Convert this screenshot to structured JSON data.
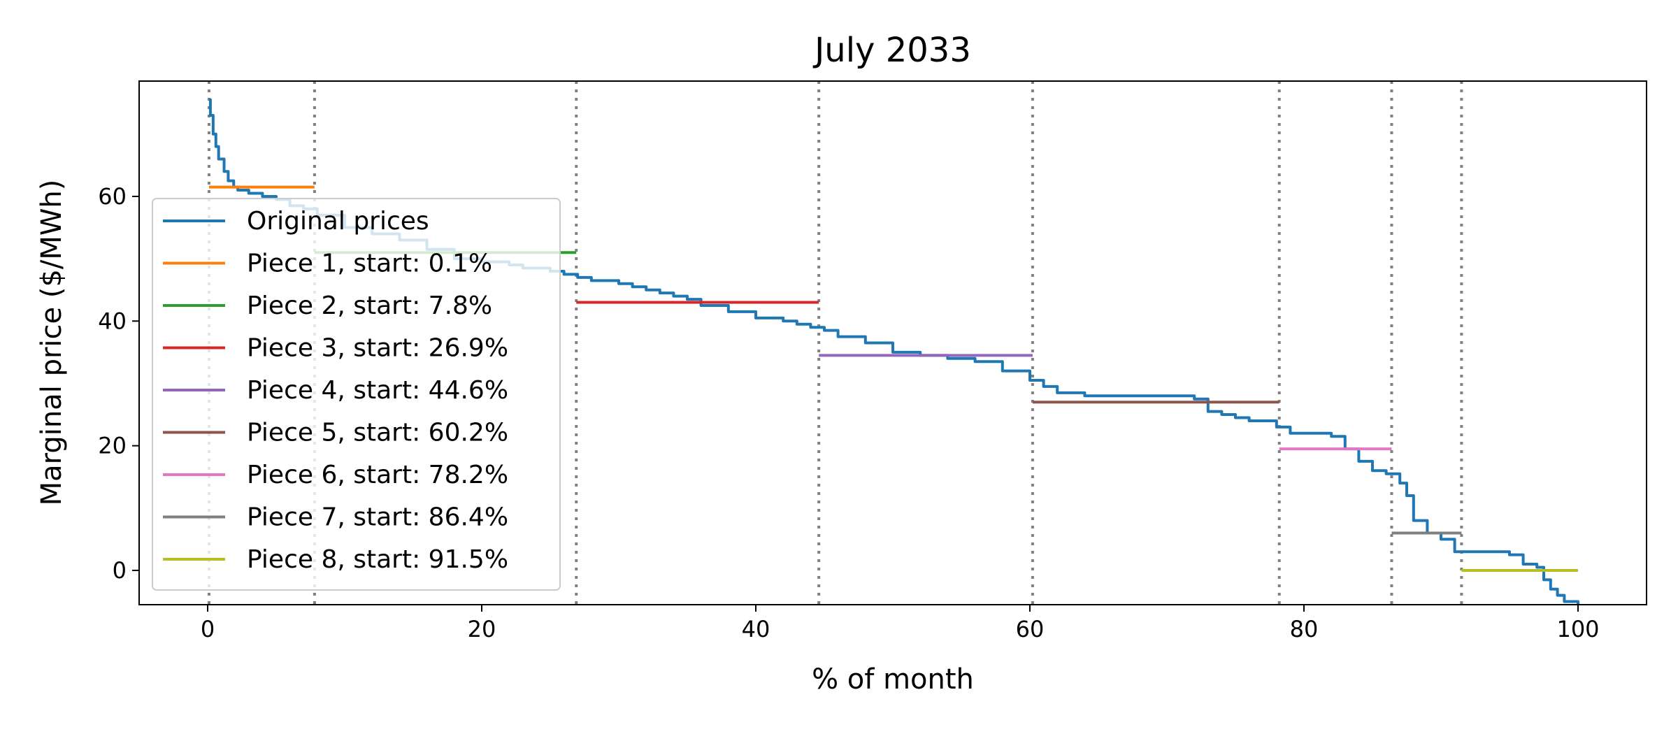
{
  "chart_data": {
    "type": "line",
    "title": "July 2033",
    "xlabel": "% of month",
    "ylabel": "Marginal price ($/MWh)",
    "xlim": [
      -5,
      105
    ],
    "ylim": [
      -5.5,
      78.5
    ],
    "xticks": [
      0,
      20,
      40,
      60,
      80,
      100
    ],
    "yticks": [
      0,
      20,
      40,
      60
    ],
    "grid": false,
    "legend_position": "center-left",
    "vlines": [
      0.1,
      7.8,
      26.9,
      44.6,
      60.2,
      78.2,
      86.4,
      91.5
    ],
    "vline_color": "#808080",
    "series": [
      {
        "name": "Original prices",
        "color": "#1f77b4",
        "style": "step",
        "x": [
          0.1,
          0.2,
          0.4,
          0.6,
          0.8,
          1.2,
          1.5,
          1.9,
          2.2,
          3.0,
          4.0,
          5.0,
          6.0,
          7.0,
          8.0,
          10.0,
          12.0,
          14.0,
          16.0,
          18.0,
          20.0,
          22.0,
          23.0,
          25.0,
          26.0,
          27.0,
          28.0,
          29.0,
          30.0,
          31.0,
          32.0,
          33.0,
          34.0,
          35.0,
          36.0,
          38.0,
          40.0,
          42.0,
          43.0,
          44.0,
          45.0,
          46.0,
          48.0,
          50.0,
          52.0,
          54.0,
          56.0,
          58.0,
          60.0,
          61.0,
          62.0,
          64.0,
          66.0,
          68.0,
          70.0,
          71.0,
          72.0,
          73.0,
          74.0,
          75.0,
          76.0,
          78.0,
          79.0,
          80.0,
          82.0,
          83.0,
          84.0,
          85.0,
          86.0,
          87.0,
          87.5,
          88.0,
          89.0,
          90.0,
          91.0,
          92.0,
          93.0,
          94.0,
          95.0,
          96.0,
          97.0,
          97.5,
          98.0,
          98.5,
          99.0,
          100.0
        ],
        "values": [
          75.5,
          73.0,
          70.0,
          68.0,
          66.0,
          64.0,
          62.5,
          61.5,
          61.0,
          60.5,
          60.0,
          59.5,
          58.5,
          58.0,
          57.0,
          55.0,
          54.0,
          53.0,
          51.5,
          50.0,
          49.5,
          49.0,
          48.5,
          48.0,
          47.5,
          47.0,
          46.5,
          46.5,
          46.0,
          45.5,
          45.0,
          44.5,
          44.0,
          43.5,
          42.5,
          41.5,
          40.5,
          40.0,
          39.5,
          39.0,
          38.5,
          37.5,
          36.5,
          35.0,
          34.5,
          34.0,
          33.5,
          32.0,
          30.5,
          29.5,
          28.5,
          28.0,
          28.0,
          28.0,
          28.0,
          28.0,
          27.5,
          25.5,
          25.0,
          24.5,
          24.0,
          23.0,
          22.0,
          22.0,
          21.5,
          19.5,
          17.5,
          16.0,
          15.5,
          14.0,
          12.0,
          8.0,
          6.0,
          5.0,
          3.0,
          3.0,
          3.0,
          3.0,
          2.5,
          1.0,
          0.5,
          -1.5,
          -3.0,
          -4.0,
          -5.0,
          -5.5
        ]
      },
      {
        "name": "Piece 1, start: 0.1%",
        "color": "#ff7f0e",
        "style": "segment",
        "x": [
          0.1,
          7.8
        ],
        "values": [
          61.5,
          61.5
        ]
      },
      {
        "name": "Piece 2, start: 7.8%",
        "color": "#2ca02c",
        "style": "segment",
        "x": [
          7.8,
          26.9
        ],
        "values": [
          51.0,
          51.0
        ]
      },
      {
        "name": "Piece 3, start: 26.9%",
        "color": "#d62728",
        "style": "segment",
        "x": [
          26.9,
          44.6
        ],
        "values": [
          43.0,
          43.0
        ]
      },
      {
        "name": "Piece 4, start: 44.6%",
        "color": "#9467bd",
        "style": "segment",
        "x": [
          44.6,
          60.2
        ],
        "values": [
          34.5,
          34.5
        ]
      },
      {
        "name": "Piece 5, start: 60.2%",
        "color": "#8c564b",
        "style": "segment",
        "x": [
          60.2,
          78.2
        ],
        "values": [
          27.0,
          27.0
        ]
      },
      {
        "name": "Piece 6, start: 78.2%",
        "color": "#e377c2",
        "style": "segment",
        "x": [
          78.2,
          86.4
        ],
        "values": [
          19.5,
          19.5
        ]
      },
      {
        "name": "Piece 7, start: 86.4%",
        "color": "#7f7f7f",
        "style": "segment",
        "x": [
          86.4,
          91.5
        ],
        "values": [
          6.0,
          6.0
        ]
      },
      {
        "name": "Piece 8, start: 91.5%",
        "color": "#bcbd22",
        "style": "segment",
        "x": [
          91.5,
          100.0
        ],
        "values": [
          0.0,
          0.0
        ]
      }
    ]
  }
}
